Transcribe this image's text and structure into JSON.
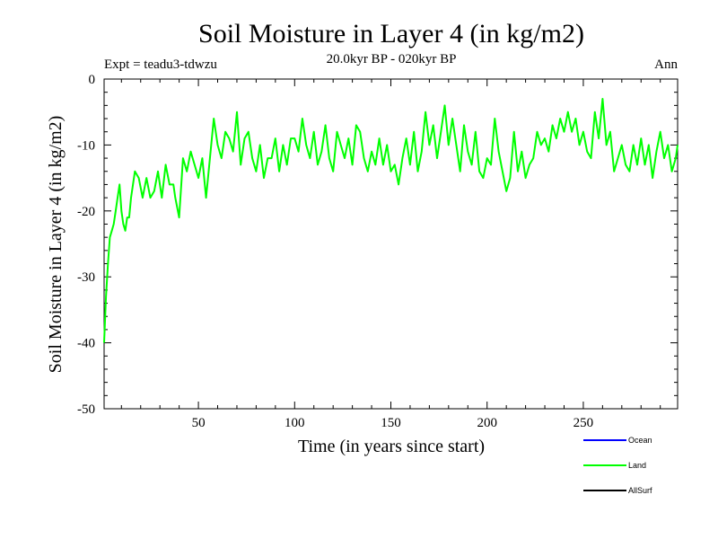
{
  "chart_data": {
    "type": "line",
    "title": "Soil Moisture in Layer 4 (in kg/m2)",
    "subtitle": "20.0kyr BP - 020kyr BP",
    "expt_label": "Expt = teadu3-tdwzu",
    "period_label": "Ann",
    "xlabel": "Time (in years since start)",
    "ylabel": "Soil Moisture in Layer 4 (in kg/m2)",
    "xlim": [
      1,
      299
    ],
    "ylim": [
      -50,
      0
    ],
    "xticks": [
      50,
      100,
      150,
      200,
      250
    ],
    "yticks": [
      0,
      -10,
      -20,
      -30,
      -40,
      -50
    ],
    "legend": [
      {
        "name": "Ocean",
        "color": "#0000ff"
      },
      {
        "name": "Land",
        "color": "#00ff00"
      },
      {
        "name": "AllSurf",
        "color": "#000000"
      }
    ],
    "series": [
      {
        "name": "Land",
        "color": "#00ff00",
        "x": [
          1,
          2,
          3,
          4,
          5,
          6,
          7,
          8,
          9,
          10,
          11,
          12,
          13,
          14,
          15,
          17,
          19,
          21,
          23,
          25,
          27,
          29,
          31,
          33,
          35,
          37,
          38,
          40,
          42,
          44,
          46,
          48,
          50,
          52,
          54,
          56,
          58,
          60,
          62,
          64,
          66,
          68,
          70,
          72,
          74,
          76,
          78,
          80,
          82,
          84,
          86,
          88,
          90,
          92,
          94,
          96,
          98,
          100,
          102,
          104,
          106,
          108,
          110,
          112,
          114,
          116,
          118,
          120,
          122,
          124,
          126,
          128,
          130,
          132,
          134,
          136,
          138,
          140,
          142,
          144,
          146,
          148,
          150,
          152,
          154,
          156,
          158,
          160,
          162,
          164,
          166,
          168,
          170,
          172,
          174,
          176,
          178,
          180,
          182,
          184,
          186,
          188,
          190,
          192,
          194,
          196,
          198,
          200,
          202,
          204,
          206,
          208,
          210,
          212,
          214,
          216,
          218,
          220,
          222,
          224,
          226,
          228,
          230,
          232,
          234,
          236,
          238,
          240,
          242,
          244,
          246,
          248,
          250,
          252,
          254,
          256,
          258,
          260,
          262,
          264,
          266,
          268,
          270,
          272,
          274,
          276,
          278,
          280,
          282,
          284,
          286,
          288,
          290,
          292,
          294,
          296,
          298,
          299
        ],
        "y": [
          -40,
          -33,
          -28,
          -24,
          -23,
          -22,
          -20,
          -18,
          -16,
          -20,
          -22,
          -23,
          -21,
          -21,
          -18,
          -14,
          -15,
          -18,
          -15,
          -18,
          -17,
          -14,
          -18,
          -13,
          -16,
          -16,
          -18,
          -21,
          -12,
          -14,
          -11,
          -13,
          -15,
          -12,
          -18,
          -12,
          -6,
          -10,
          -12,
          -8,
          -9,
          -11,
          -5,
          -13,
          -9,
          -8,
          -12,
          -14,
          -10,
          -15,
          -12,
          -12,
          -9,
          -14,
          -10,
          -13,
          -9,
          -9,
          -11,
          -6,
          -10,
          -12,
          -8,
          -13,
          -11,
          -7,
          -12,
          -14,
          -8,
          -10,
          -12,
          -9,
          -13,
          -7,
          -8,
          -12,
          -14,
          -11,
          -13,
          -9,
          -13,
          -10,
          -14,
          -13,
          -16,
          -12,
          -9,
          -13,
          -8,
          -14,
          -11,
          -5,
          -10,
          -7,
          -12,
          -8,
          -4,
          -10,
          -6,
          -10,
          -14,
          -7,
          -11,
          -13,
          -8,
          -14,
          -15,
          -12,
          -13,
          -6,
          -11,
          -14,
          -17,
          -15,
          -8,
          -14,
          -11,
          -15,
          -13,
          -12,
          -8,
          -10,
          -9,
          -11,
          -7,
          -9,
          -6,
          -8,
          -5,
          -8,
          -6,
          -10,
          -8,
          -11,
          -12,
          -5,
          -9,
          -3,
          -10,
          -8,
          -14,
          -12,
          -10,
          -13,
          -14,
          -10,
          -13,
          -9,
          -13,
          -10,
          -15,
          -11,
          -8,
          -12,
          -10,
          -14,
          -12,
          -10
        ]
      }
    ]
  }
}
